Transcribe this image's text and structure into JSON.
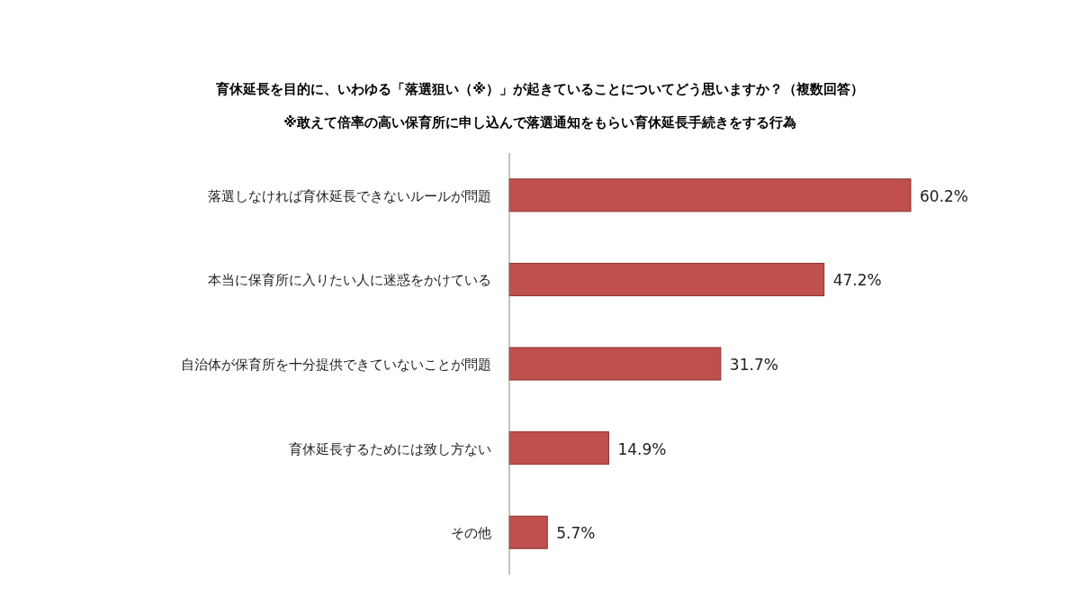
{
  "chart_data": {
    "type": "bar",
    "orientation": "horizontal",
    "title": "育休延長を目的に、いわゆる「落選狙い（※）」が起きていることについてどう思いますか？（複数回答）",
    "subtitle": "※敢えて倍率の高い保育所に申し込んで落選通知をもらい育休延長手続きをする行為",
    "categories": [
      "落選しなければ育休延長できないルールが問題",
      "本当に保育所に入りたい人に迷惑をかけている",
      "自治体が保育所を十分提供できていないことが問題",
      "育休延長するためには致し方ない",
      "その他"
    ],
    "values": [
      60.2,
      47.2,
      31.7,
      14.9,
      5.7
    ],
    "value_labels": [
      "60.2%",
      "47.2%",
      "31.7%",
      "14.9%",
      "5.7%"
    ],
    "color": "#c0504d"
  }
}
